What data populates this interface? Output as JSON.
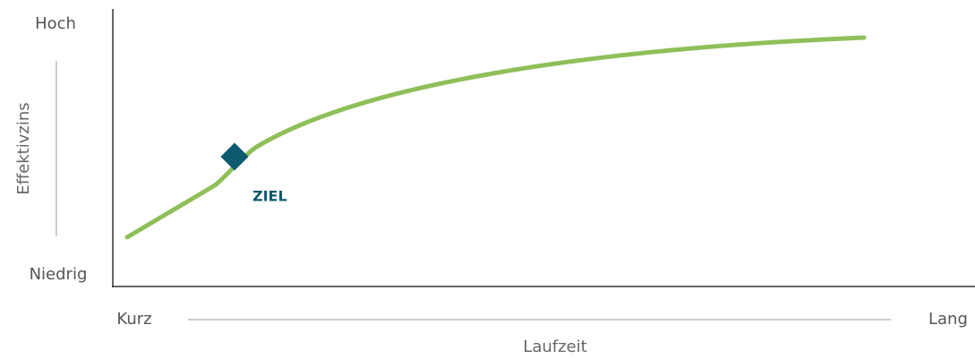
{
  "y_axis": {
    "top": "Hoch",
    "bottom": "Niedrig",
    "label": "Effektivzins"
  },
  "x_axis": {
    "left": "Kurz",
    "right": "Lang",
    "label": "Laufzeit"
  },
  "marker": {
    "label": "ZIEL"
  }
}
